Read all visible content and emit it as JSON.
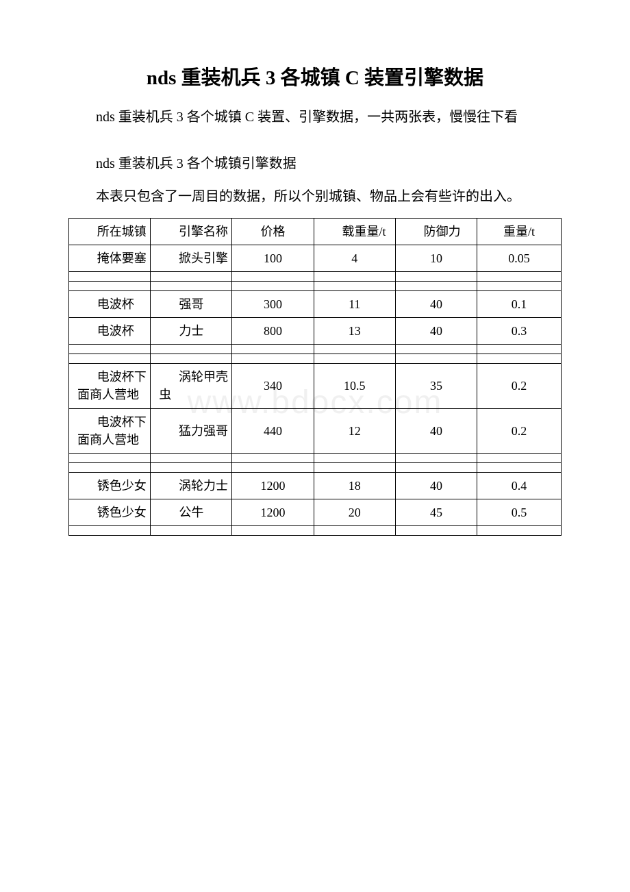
{
  "title": "nds 重装机兵 3 各城镇 C 装置引擎数据",
  "intro": "nds 重装机兵 3 各个城镇 C 装置、引擎数据，一共两张表，慢慢往下看",
  "subhead": "nds 重装机兵 3 各个城镇引擎数据",
  "note": "本表只包含了一周目的数据，所以个别城镇、物品上会有些许的出入。",
  "watermark": "www.bdocx.com",
  "table": {
    "columns": [
      "所在城镇",
      "引擎名称",
      "价格",
      "载重量/t",
      "防御力",
      "重量/t"
    ],
    "col_widths": [
      "16.5%",
      "16.5%",
      "16.5%",
      "16.5%",
      "16.5%",
      "17%"
    ],
    "header_align": [
      "indent",
      "indent",
      "center",
      "indent",
      "indent",
      "center"
    ],
    "rows": [
      {
        "type": "data",
        "cells": [
          "掩体要塞",
          "掀头引擎",
          "100",
          "4",
          "10",
          "0.05"
        ],
        "align": [
          "indent",
          "indent",
          "center",
          "center",
          "center",
          "center"
        ]
      },
      {
        "type": "thin"
      },
      {
        "type": "thin"
      },
      {
        "type": "data",
        "cells": [
          "电波杯",
          "强哥",
          "300",
          "11",
          "40",
          "0.1"
        ],
        "align": [
          "indent",
          "center",
          "center",
          "center",
          "center",
          "center"
        ]
      },
      {
        "type": "data",
        "cells": [
          "电波杯",
          "力士",
          "800",
          "13",
          "40",
          "0.3"
        ],
        "align": [
          "indent",
          "center",
          "center",
          "center",
          "center",
          "center"
        ]
      },
      {
        "type": "thin"
      },
      {
        "type": "thin"
      },
      {
        "type": "data",
        "cells": [
          "电波杯下面商人营地",
          "涡轮甲壳虫",
          "340",
          "10.5",
          "35",
          "0.2"
        ],
        "align": [
          "indent",
          "indent",
          "center",
          "center",
          "center",
          "center"
        ]
      },
      {
        "type": "data",
        "cells": [
          "电波杯下面商人营地",
          "猛力强哥",
          "440",
          "12",
          "40",
          "0.2"
        ],
        "align": [
          "indent",
          "indent",
          "center",
          "center",
          "center",
          "center"
        ]
      },
      {
        "type": "thin"
      },
      {
        "type": "thin"
      },
      {
        "type": "data",
        "cells": [
          "锈色少女",
          "涡轮力士",
          "1200",
          "18",
          "40",
          "0.4"
        ],
        "align": [
          "indent",
          "indent",
          "center",
          "center",
          "center",
          "center"
        ]
      },
      {
        "type": "data",
        "cells": [
          "锈色少女",
          "公牛",
          "1200",
          "20",
          "45",
          "0.5"
        ],
        "align": [
          "indent",
          "center",
          "center",
          "center",
          "center",
          "center"
        ]
      },
      {
        "type": "thin"
      }
    ]
  }
}
